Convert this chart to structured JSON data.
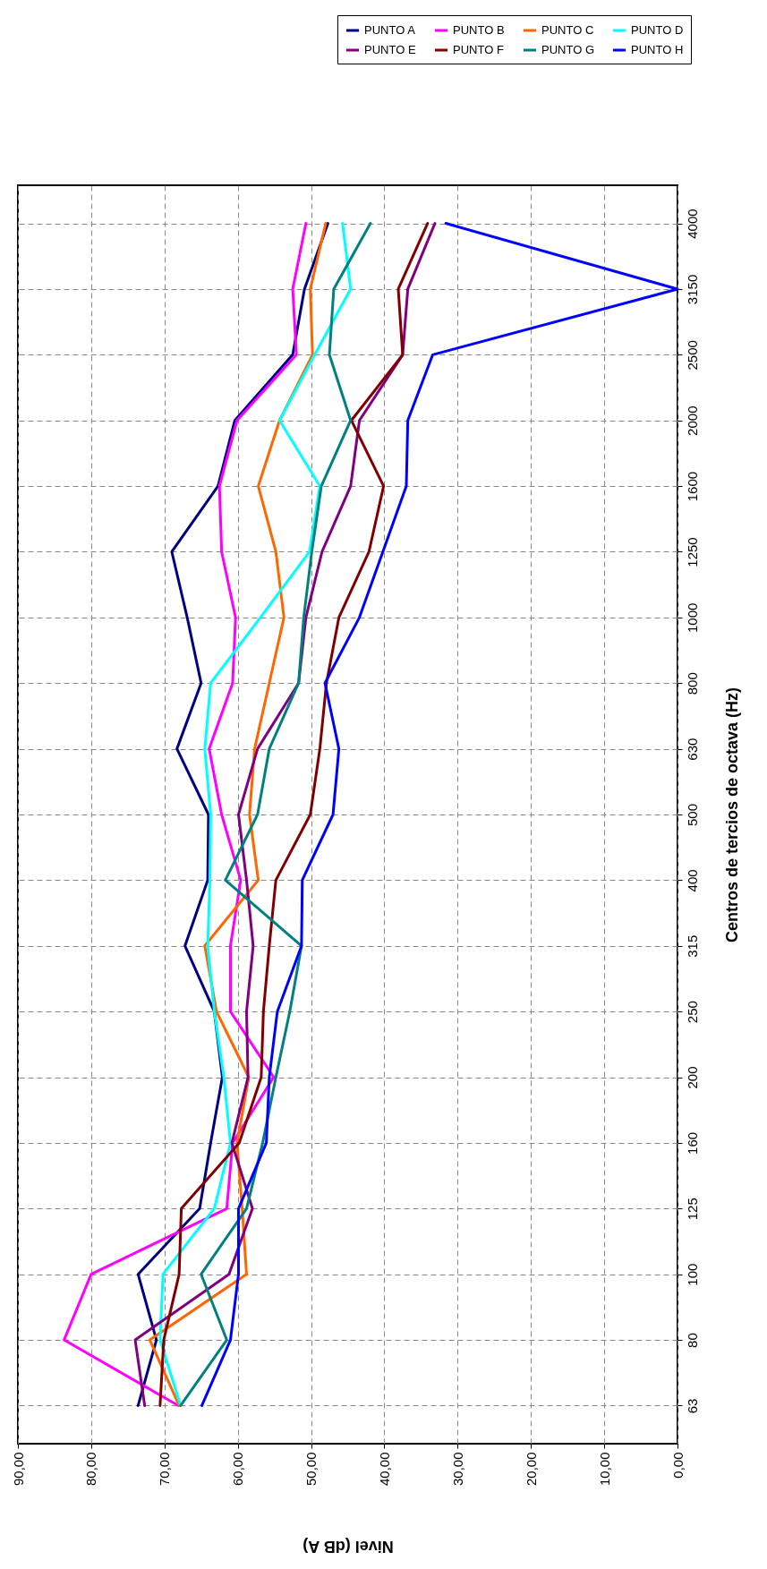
{
  "chart_data": {
    "type": "line",
    "orientation": "horizontal",
    "xlabel": "Nivel (dB A)",
    "ylabel": "Centros de tercios de octava (Hz)",
    "categories": [
      "4000",
      "3150",
      "2500",
      "2000",
      "1600",
      "1250",
      "1000",
      "800",
      "630",
      "500",
      "400",
      "315",
      "250",
      "200",
      "160",
      "125",
      "100",
      "80",
      "63"
    ],
    "series": [
      {
        "name": "PUNTO A",
        "color": "#000080",
        "values": [
          47.7,
          50.9,
          52.5,
          60.4,
          62.7,
          69.0,
          66.9,
          65.0,
          68.3,
          64.0,
          64.1,
          67.2,
          63.2,
          62.1,
          63.7,
          65.2,
          73.6,
          71.1,
          73.6
        ]
      },
      {
        "name": "PUNTO B",
        "color": "#ff00ff",
        "values": [
          50.7,
          52.5,
          52.0,
          60.1,
          62.5,
          62.2,
          60.3,
          60.7,
          63.9,
          62.2,
          59.6,
          61.0,
          61.0,
          55.1,
          60.7,
          61.5,
          80.0,
          83.7,
          68.1
        ]
      },
      {
        "name": "PUNTO C",
        "color": "#ff6600",
        "values": [
          48.0,
          50.1,
          49.8,
          54.3,
          57.2,
          54.8,
          53.7,
          55.7,
          57.7,
          58.4,
          57.2,
          64.5,
          62.9,
          58.5,
          60.1,
          59.4,
          58.8,
          72.0,
          68.0
        ]
      },
      {
        "name": "PUNTO D",
        "color": "#00ffff",
        "values": [
          45.7,
          44.6,
          49.5,
          54.3,
          48.8,
          50.2,
          56.9,
          63.7,
          64.5,
          63.7,
          63.8,
          64.1,
          63.2,
          61.9,
          61.0,
          63.2,
          70.2,
          70.6,
          67.8
        ]
      },
      {
        "name": "PUNTO E",
        "color": "#800080",
        "values": [
          33.1,
          36.8,
          37.5,
          43.4,
          44.6,
          48.5,
          50.7,
          51.7,
          57.3,
          59.9,
          58.8,
          57.9,
          58.8,
          58.6,
          60.8,
          58.0,
          61.2,
          74.0,
          72.7
        ]
      },
      {
        "name": "PUNTO F",
        "color": "#800000",
        "values": [
          34.1,
          38.1,
          37.5,
          44.5,
          40.1,
          42.1,
          46.2,
          47.9,
          48.8,
          50.1,
          54.8,
          55.7,
          56.5,
          56.8,
          59.8,
          67.7,
          68.0,
          70.1,
          70.6
        ]
      },
      {
        "name": "PUNTO G",
        "color": "#008080",
        "values": [
          41.9,
          46.9,
          47.5,
          44.6,
          48.6,
          49.9,
          51.0,
          51.7,
          55.7,
          57.3,
          61.7,
          51.3,
          52.9,
          54.8,
          56.6,
          58.8,
          65.0,
          61.5,
          67.8
        ]
      },
      {
        "name": "PUNTO H",
        "color": "#0000ff",
        "values": [
          31.6,
          0,
          33.4,
          36.8,
          37.0,
          40.2,
          43.4,
          48.1,
          46.2,
          47.0,
          51.2,
          51.3,
          54.6,
          55.7,
          56.1,
          59.9,
          59.9,
          61.0,
          64.9
        ]
      }
    ],
    "xlim": [
      90,
      0
    ],
    "xticks": [
      {
        "value": 90,
        "label": "90,00"
      },
      {
        "value": 80,
        "label": "80,00"
      },
      {
        "value": 70,
        "label": "70,00"
      },
      {
        "value": 60,
        "label": "60,00"
      },
      {
        "value": 50,
        "label": "50,00"
      },
      {
        "value": 40,
        "label": "40,00"
      },
      {
        "value": 30,
        "label": "30,00"
      },
      {
        "value": 20,
        "label": "20,00"
      },
      {
        "value": 10,
        "label": "10,00"
      },
      {
        "value": 0,
        "label": "0,00"
      }
    ],
    "grid": true,
    "legend": "top right",
    "line_style": "solid"
  }
}
